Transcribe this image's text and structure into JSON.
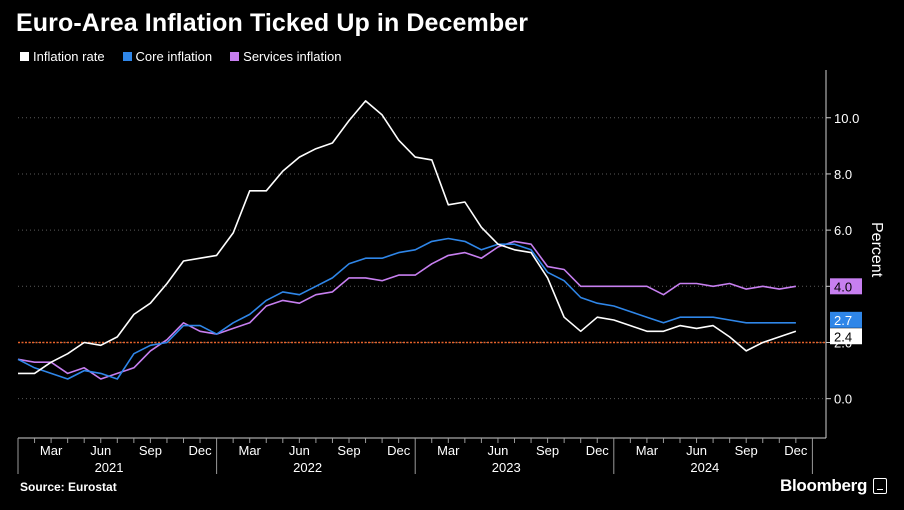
{
  "chart_data": {
    "type": "line",
    "title": "Euro-Area Inflation Ticked Up in December",
    "ylabel": "Percent",
    "ylim": [
      -1.4,
      11.7
    ],
    "yticks": [
      "0.0",
      "2.0",
      "4.0",
      "6.0",
      "8.0",
      "10.0"
    ],
    "reference_line": {
      "value": 2.0,
      "color": "#e8632a"
    },
    "x_month_labels": [
      "Mar",
      "Jun",
      "Sep",
      "Dec",
      "Mar",
      "Jun",
      "Sep",
      "Dec",
      "Mar",
      "Jun",
      "Sep",
      "Dec",
      "Mar",
      "Jun",
      "Sep",
      "Dec"
    ],
    "x_year_labels": [
      "2021",
      "2022",
      "2023",
      "2024"
    ],
    "months": [
      "2021-01",
      "2021-02",
      "2021-03",
      "2021-04",
      "2021-05",
      "2021-06",
      "2021-07",
      "2021-08",
      "2021-09",
      "2021-10",
      "2021-11",
      "2021-12",
      "2022-01",
      "2022-02",
      "2022-03",
      "2022-04",
      "2022-05",
      "2022-06",
      "2022-07",
      "2022-08",
      "2022-09",
      "2022-10",
      "2022-11",
      "2022-12",
      "2023-01",
      "2023-02",
      "2023-03",
      "2023-04",
      "2023-05",
      "2023-06",
      "2023-07",
      "2023-08",
      "2023-09",
      "2023-10",
      "2023-11",
      "2023-12",
      "2024-01",
      "2024-02",
      "2024-03",
      "2024-04",
      "2024-05",
      "2024-06",
      "2024-07",
      "2024-08",
      "2024-09",
      "2024-10",
      "2024-11",
      "2024-12"
    ],
    "series": [
      {
        "name": "Inflation rate",
        "color": "#ffffff",
        "values": [
          0.9,
          0.9,
          1.3,
          1.6,
          2.0,
          1.9,
          2.2,
          3.0,
          3.4,
          4.1,
          4.9,
          5.0,
          5.1,
          5.9,
          7.4,
          7.4,
          8.1,
          8.6,
          8.9,
          9.1,
          9.9,
          10.6,
          10.1,
          9.2,
          8.6,
          8.5,
          6.9,
          7.0,
          6.1,
          5.5,
          5.3,
          5.2,
          4.3,
          2.9,
          2.4,
          2.9,
          2.8,
          2.6,
          2.4,
          2.4,
          2.6,
          2.5,
          2.6,
          2.2,
          1.7,
          2.0,
          2.2,
          2.4
        ]
      },
      {
        "name": "Core inflation",
        "color": "#2f86e8",
        "values": [
          1.4,
          1.1,
          0.9,
          0.7,
          1.0,
          0.9,
          0.7,
          1.6,
          1.9,
          2.0,
          2.6,
          2.6,
          2.3,
          2.7,
          3.0,
          3.5,
          3.8,
          3.7,
          4.0,
          4.3,
          4.8,
          5.0,
          5.0,
          5.2,
          5.3,
          5.6,
          5.7,
          5.6,
          5.3,
          5.5,
          5.5,
          5.3,
          4.5,
          4.2,
          3.6,
          3.4,
          3.3,
          3.1,
          2.9,
          2.7,
          2.9,
          2.9,
          2.9,
          2.8,
          2.7,
          2.7,
          2.7,
          2.7
        ]
      },
      {
        "name": "Services inflation",
        "color": "#c77ff0",
        "values": [
          1.4,
          1.3,
          1.3,
          0.9,
          1.1,
          0.7,
          0.9,
          1.1,
          1.7,
          2.1,
          2.7,
          2.4,
          2.3,
          2.5,
          2.7,
          3.3,
          3.5,
          3.4,
          3.7,
          3.8,
          4.3,
          4.3,
          4.2,
          4.4,
          4.4,
          4.8,
          5.1,
          5.2,
          5.0,
          5.4,
          5.6,
          5.5,
          4.7,
          4.6,
          4.0,
          4.0,
          4.0,
          4.0,
          4.0,
          3.7,
          4.1,
          4.1,
          4.0,
          4.1,
          3.9,
          4.0,
          3.9,
          4.0
        ]
      }
    ],
    "end_labels": [
      {
        "series": "Services inflation",
        "text": "4.0"
      },
      {
        "series": "Core inflation",
        "text": "2.7"
      },
      {
        "series": "Inflation rate",
        "text": "2.4"
      }
    ]
  },
  "source": "Source: Eurostat",
  "brand": "Bloomberg"
}
